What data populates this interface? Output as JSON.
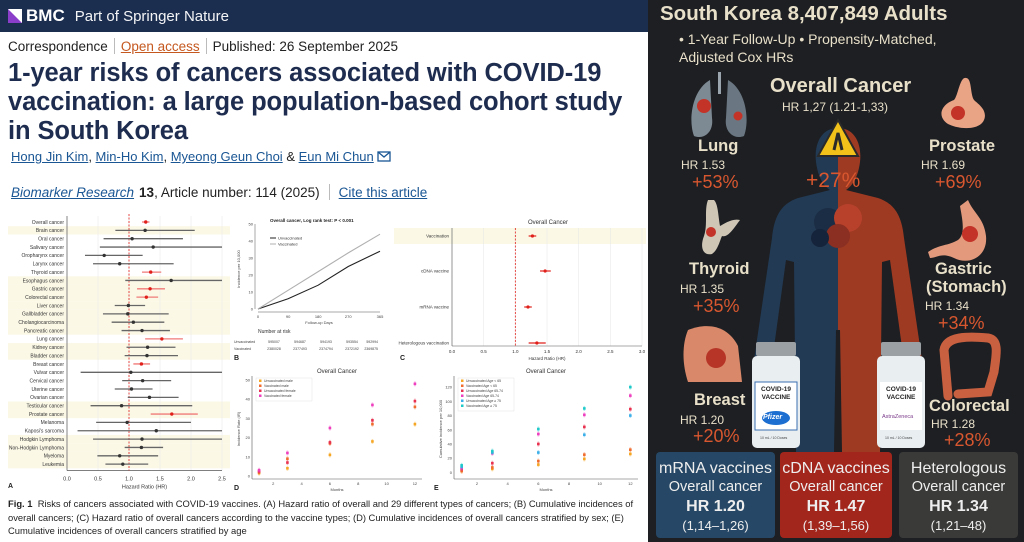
{
  "header": {
    "brand": "BMC",
    "tagline": "Part of Springer Nature",
    "brand_color": "#1b2e50"
  },
  "article": {
    "type": "Correspondence",
    "access": "Open access",
    "published": "Published: 26 September 2025",
    "title": "1-year risks of cancers associated with COVID-19 vaccination: a large population-based cohort study in South Korea",
    "authors": [
      "Hong Jin Kim",
      "Min-Ho Kim",
      "Myeong Geun Choi",
      "Eun Mi Chun"
    ],
    "author_sep": [
      ", ",
      ", ",
      " & "
    ],
    "journal": "Biomarker Research",
    "volume": "13",
    "article_number": ", Article number: 114 (2025)",
    "cite": "Cite this article"
  },
  "figure": {
    "caption_label": "Fig. 1",
    "caption": "Risks of cancers associated with COVID-19 vaccines. (A) Hazard ratio of overall and 29 different types of cancers; (B) Cumulative incidences of overall cancers; (C) Hazard ratio of overall cancers according to the vaccine types; (D) Cumulative incidences of overall cancers stratified by sex; (E) Cumulative incidences of overall cancers stratified by age",
    "panel_labels": [
      "A",
      "B",
      "C",
      "D",
      "E"
    ]
  },
  "chart_data": [
    {
      "panel": "A",
      "type": "forest",
      "xlabel": "Hazard Ratio (HR)",
      "xlim": [
        0,
        2.5
      ],
      "xticks": [
        "0.0",
        "0.5",
        "1.0",
        "1.5",
        "2.0",
        "2.5"
      ],
      "reference_line": 1.0,
      "significant_color": "#e0201b",
      "rows": [
        {
          "label": "Overall cancer",
          "hr": 1.27,
          "lo": 1.21,
          "hi": 1.33,
          "sig": true
        },
        {
          "label": "Brain cancer",
          "hr": 1.26,
          "lo": 0.78,
          "hi": 2.06,
          "shade": true
        },
        {
          "label": "Oral cancer",
          "hr": 1.05,
          "lo": 0.59,
          "hi": 1.87
        },
        {
          "label": "Salivary cancer",
          "hr": 1.39,
          "lo": 0.53,
          "hi": 2.5
        },
        {
          "label": "Oropharynx cancer",
          "hr": 0.6,
          "lo": 0.29,
          "hi": 1.22
        },
        {
          "label": "Larynx cancer",
          "hr": 0.85,
          "lo": 0.42,
          "hi": 1.72
        },
        {
          "label": "Thyroid cancer",
          "hr": 1.35,
          "lo": 1.21,
          "hi": 1.52,
          "sig": true
        },
        {
          "label": "Esophagus cancer",
          "hr": 1.68,
          "lo": 0.94,
          "hi": 2.5,
          "shade": true
        },
        {
          "label": "Gastric cancer",
          "hr": 1.34,
          "lo": 1.13,
          "hi": 1.58,
          "sig": true,
          "shade": true
        },
        {
          "label": "Colorectal cancer",
          "hr": 1.28,
          "lo": 1.12,
          "hi": 1.47,
          "sig": true,
          "shade": true
        },
        {
          "label": "Liver cancer",
          "hr": 0.99,
          "lo": 0.77,
          "hi": 1.26,
          "shade": true
        },
        {
          "label": "Gallbladder cancer",
          "hr": 0.98,
          "lo": 0.58,
          "hi": 1.64,
          "shade": true
        },
        {
          "label": "Cholangiocarcinoma",
          "hr": 1.07,
          "lo": 0.72,
          "hi": 1.57,
          "shade": true
        },
        {
          "label": "Pancreatic cancer",
          "hr": 1.21,
          "lo": 0.88,
          "hi": 1.66,
          "shade": true
        },
        {
          "label": "Lung cancer",
          "hr": 1.53,
          "lo": 1.26,
          "hi": 1.87,
          "sig": true
        },
        {
          "label": "Kidney cancer",
          "hr": 1.3,
          "lo": 0.96,
          "hi": 1.75,
          "shade": true
        },
        {
          "label": "Bladder cancer",
          "hr": 1.29,
          "lo": 0.93,
          "hi": 1.79,
          "shade": true
        },
        {
          "label": "Breast cancer",
          "hr": 1.2,
          "lo": 1.07,
          "hi": 1.34,
          "sig": true
        },
        {
          "label": "Vulvar cancer",
          "hr": 1.03,
          "lo": 0.22,
          "hi": 2.5
        },
        {
          "label": "Cervical cancer",
          "hr": 1.22,
          "lo": 0.89,
          "hi": 1.68
        },
        {
          "label": "Uterine cancer",
          "hr": 1.04,
          "lo": 0.77,
          "hi": 1.38
        },
        {
          "label": "Ovarian cancer",
          "hr": 1.33,
          "lo": 0.98,
          "hi": 1.8
        },
        {
          "label": "Testicular cancer",
          "hr": 0.88,
          "lo": 0.38,
          "hi": 2.02,
          "shade": true
        },
        {
          "label": "Prostate cancer",
          "hr": 1.69,
          "lo": 1.35,
          "hi": 2.11,
          "sig": true,
          "shade": true
        },
        {
          "label": "Melanoma",
          "hr": 0.97,
          "lo": 0.47,
          "hi": 2.0
        },
        {
          "label": "Kaposi's sarcoma",
          "hr": 1.44,
          "lo": 0.17,
          "hi": 2.5
        },
        {
          "label": "Hodgkin Lymphoma",
          "hr": 1.21,
          "lo": 0.42,
          "hi": 2.5,
          "shade": true
        },
        {
          "label": "Non-Hodgkin Lymphoma",
          "hr": 1.2,
          "lo": 0.93,
          "hi": 1.55,
          "shade": true
        },
        {
          "label": "Myeloma",
          "hr": 0.85,
          "lo": 0.49,
          "hi": 1.47,
          "shade": true
        },
        {
          "label": "Leukemia",
          "hr": 0.9,
          "lo": 0.62,
          "hi": 1.31,
          "shade": true
        }
      ]
    },
    {
      "panel": "B",
      "type": "line",
      "title": "Overall cancer, Log rank test: P < 0.001",
      "xlabel": "Follow-up Days",
      "ylabel": "Incidence per 10,000",
      "xlim": [
        0,
        365
      ],
      "ylim": [
        0,
        50
      ],
      "xticks": [
        0,
        90,
        180,
        270,
        365
      ],
      "yticks": [
        0,
        10,
        20,
        30,
        40,
        50
      ],
      "series": [
        {
          "name": "Unvaccinated",
          "color": "#222222",
          "x": [
            0,
            90,
            180,
            270,
            365
          ],
          "y": [
            0,
            6,
            14,
            25,
            34
          ]
        },
        {
          "name": "Vaccinated",
          "color": "#b0b0b0",
          "x": [
            0,
            90,
            180,
            270,
            365
          ],
          "y": [
            0,
            11,
            22,
            33,
            44
          ]
        }
      ],
      "risk_table": {
        "label": "Number at risk",
        "rows": [
          {
            "name": "Unvaccinated",
            "values": [
              "595007",
              "594687",
              "594193",
              "593554",
              "592994"
            ]
          },
          {
            "name": "Vaccinated",
            "values": [
              "2380028",
              "2377493",
              "2374794",
              "2372192",
              "2369875"
            ]
          }
        ]
      }
    },
    {
      "panel": "C",
      "type": "forest",
      "title": "Overall Cancer",
      "xlabel": "Hazard Ratio (HR)",
      "xlim": [
        0,
        3
      ],
      "xticks": [
        "0.0",
        "0.5",
        "1.0",
        "1.5",
        "2.0",
        "2.5",
        "3.0"
      ],
      "reference_line": 1.0,
      "rows": [
        {
          "label": "Vaccination",
          "hr": 1.27,
          "lo": 1.21,
          "hi": 1.33,
          "shade": true
        },
        {
          "label": "cDNA vaccine",
          "hr": 1.47,
          "lo": 1.39,
          "hi": 1.56
        },
        {
          "label": "mRNA vaccine",
          "hr": 1.2,
          "lo": 1.14,
          "hi": 1.26
        },
        {
          "label": "Heterologous vaccination",
          "hr": 1.34,
          "lo": 1.21,
          "hi": 1.48
        }
      ]
    },
    {
      "panel": "D",
      "type": "scatter",
      "title": "Overall Cancer",
      "xlabel": "Months",
      "ylabel": "Incidence Rate (IR)",
      "xlim": [
        0.5,
        12.5
      ],
      "ylim": [
        0,
        50
      ],
      "xticks": [
        2,
        4,
        6,
        8,
        10,
        12
      ],
      "yticks": [
        0,
        10,
        20,
        30,
        40,
        50
      ],
      "x": [
        1,
        3,
        6,
        9,
        12
      ],
      "series": [
        {
          "name": "Unvaccinated male",
          "color": "#f5a623",
          "y": [
            1.5,
            4,
            11,
            18,
            27
          ]
        },
        {
          "name": "Vaccinated male",
          "color": "#ef6b2e",
          "y": [
            2,
            9,
            17,
            27,
            36
          ]
        },
        {
          "name": "Unvaccinated female",
          "color": "#e8304f",
          "y": [
            2.5,
            7,
            17.5,
            29,
            39
          ]
        },
        {
          "name": "Vaccinated female",
          "color": "#ee3fbf",
          "y": [
            3,
            12,
            25,
            37,
            48
          ]
        }
      ]
    },
    {
      "panel": "E",
      "type": "scatter",
      "title": "Overall Cancer",
      "xlabel": "Months",
      "ylabel": "Cumulative incidence per 10,000",
      "xlim": [
        0.5,
        12.5
      ],
      "ylim": [
        -5,
        130
      ],
      "xticks": [
        2,
        4,
        6,
        8,
        10,
        12
      ],
      "yticks": [
        0,
        20,
        40,
        60,
        80,
        100,
        120
      ],
      "x": [
        1,
        3,
        6,
        9,
        12
      ],
      "series": [
        {
          "name": "Unvaccinated Age < 65",
          "color": "#f5a623",
          "y": [
            2,
            5,
            11,
            19,
            26
          ]
        },
        {
          "name": "Vaccinated Age < 65",
          "color": "#ef6b2e",
          "y": [
            2,
            7,
            16,
            25,
            32
          ]
        },
        {
          "name": "Unvaccinated Age 65-74",
          "color": "#e8304f",
          "y": [
            5,
            13,
            40,
            64,
            89
          ]
        },
        {
          "name": "Vaccinated Age 65-74",
          "color": "#ee3fbf",
          "y": [
            6,
            27,
            54,
            81,
            108
          ]
        },
        {
          "name": "Unvaccinated Age ≥ 75",
          "color": "#3aaee8",
          "y": [
            8,
            28,
            28,
            53,
            80
          ]
        },
        {
          "name": "Vaccinated Age ≥ 75",
          "color": "#1fc9c9",
          "y": [
            10,
            30,
            61,
            90,
            120
          ]
        }
      ]
    }
  ],
  "infographic": {
    "title": "South Korea 8,407,849 Adults",
    "subtitle1": "• 1-Year Follow-Up • Propensity-Matched,",
    "subtitle2": "Adjusted Cox HRs",
    "overall": {
      "label": "Overall Cancer",
      "hr": "HR 1,27 (1.21-1,33)",
      "pct": "+27%"
    },
    "organs": {
      "lung": {
        "label": "Lung",
        "hr": "HR 1.53",
        "pct": "+53%"
      },
      "prostate": {
        "label": "Prostate",
        "hr": "HR 1.69",
        "pct": "+69%"
      },
      "thyroid": {
        "label": "Thyroid",
        "hr": "HR 1.35",
        "pct": "+35%"
      },
      "gastric": {
        "label": "Gastric",
        "label2": "(Stomach)",
        "hr": "HR 1.34",
        "pct": "+34%"
      },
      "breast": {
        "label": "Breast",
        "hr": "HR 1.20",
        "pct": "+20%"
      },
      "colorectal": {
        "label": "Colorectal",
        "hr": "HR 1.28",
        "pct": "+28%"
      }
    },
    "vials": [
      {
        "label1": "COVID-19",
        "label2": "VACCINE",
        "brand": "Pfizer",
        "dose": "10 mL / 10 Doses"
      },
      {
        "label1": "COVID-19",
        "label2": "VACCINE",
        "brand": "AstraZeneca",
        "dose": "10 mL / 10 Doses"
      }
    ],
    "boxes": [
      {
        "title": "mRNA vaccines",
        "sub": "Overall cancer",
        "hr": "HR 1.20",
        "ci": "(1,14–1,26)",
        "color": "#264866"
      },
      {
        "title": "cDNA vaccines",
        "sub": "Overall cancer",
        "hr": "HR 1.47",
        "ci": "(1,39–1,56)",
        "color": "#a3261d"
      },
      {
        "title": "Heterologous",
        "sub": "Overall cancer",
        "hr": "HR 1.34",
        "ci": "(1,21–48)",
        "color": "#3a3a38"
      }
    ],
    "colors": {
      "accent": "#d9572f",
      "navy_body": "#223a54",
      "red_body": "#9e3a22",
      "text": "#e9e0c9"
    }
  }
}
